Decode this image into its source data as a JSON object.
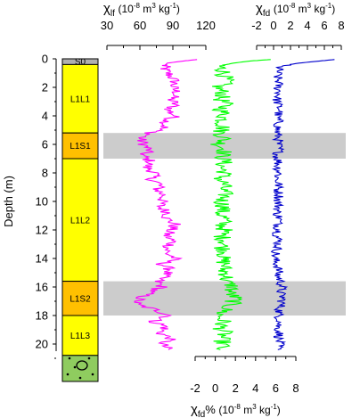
{
  "chart_data": {
    "type": "line",
    "y_axis": {
      "label": "Depth (m)",
      "ticks": [
        "0",
        "2",
        "4",
        "6",
        "8",
        "10",
        "12",
        "14",
        "16",
        "18",
        "20"
      ],
      "range": [
        0,
        20.5
      ],
      "inverted": true
    },
    "axes": [
      {
        "id": "xlf",
        "symbol": "χ",
        "subscript": "lf",
        "unit": "(10-8 m3 kg-1)",
        "unit_parts": [
          "(10",
          "-8",
          " m",
          "3",
          " kg",
          "-1",
          ")"
        ],
        "position": "top",
        "ticks": [
          "30",
          "60",
          "90",
          "120"
        ],
        "range": [
          30,
          120
        ],
        "color": "#ff00ff"
      },
      {
        "id": "xfd",
        "symbol": "χ",
        "subscript": "fd",
        "unit": "(10-8 m3 kg-1)",
        "unit_parts": [
          "(10",
          "-8",
          " m",
          "3",
          " kg",
          "-1",
          ")"
        ],
        "position": "top",
        "ticks": [
          "-2",
          "0",
          "2",
          "4",
          "6",
          "8"
        ],
        "range": [
          -2,
          8
        ],
        "color": "#0000cc"
      },
      {
        "id": "xfd_pct",
        "symbol": "χ",
        "subscript": "fd",
        "suffix": "%",
        "unit": "(10-8 m3 kg-1)",
        "unit_parts": [
          "(10",
          "-8",
          " m",
          "3",
          " kg",
          "-1",
          ")"
        ],
        "position": "bottom",
        "ticks": [
          "-2",
          "0",
          "2",
          "4",
          "6",
          "8"
        ],
        "range": [
          -2,
          8
        ],
        "color": "#00ff00"
      }
    ],
    "series": [
      {
        "id": "xlf",
        "color": "#ff00ff",
        "axis": "xlf",
        "points": [
          [
            0.05,
            112
          ],
          [
            0.15,
            100
          ],
          [
            0.3,
            85
          ],
          [
            0.5,
            82
          ],
          [
            0.8,
            83
          ],
          [
            1.2,
            88
          ],
          [
            1.6,
            92
          ],
          [
            2.0,
            90
          ],
          [
            2.4,
            94
          ],
          [
            2.8,
            88
          ],
          [
            3.2,
            92
          ],
          [
            3.6,
            86
          ],
          [
            4.0,
            92
          ],
          [
            4.4,
            84
          ],
          [
            4.8,
            82
          ],
          [
            5.2,
            70
          ],
          [
            5.6,
            60
          ],
          [
            6.0,
            64
          ],
          [
            6.4,
            68
          ],
          [
            6.8,
            62
          ],
          [
            7.2,
            70
          ],
          [
            7.6,
            66
          ],
          [
            8.0,
            74
          ],
          [
            8.4,
            70
          ],
          [
            8.8,
            78
          ],
          [
            9.2,
            76
          ],
          [
            9.6,
            82
          ],
          [
            10.0,
            80
          ],
          [
            10.4,
            78
          ],
          [
            10.8,
            86
          ],
          [
            11.2,
            84
          ],
          [
            11.6,
            92
          ],
          [
            12.0,
            88
          ],
          [
            12.4,
            84
          ],
          [
            12.8,
            90
          ],
          [
            13.2,
            86
          ],
          [
            13.6,
            84
          ],
          [
            14.0,
            92
          ],
          [
            14.4,
            80
          ],
          [
            14.8,
            88
          ],
          [
            15.2,
            82
          ],
          [
            15.6,
            76
          ],
          [
            16.0,
            80
          ],
          [
            16.4,
            68
          ],
          [
            16.8,
            60
          ],
          [
            17.2,
            56
          ],
          [
            17.6,
            74
          ],
          [
            18.0,
            88
          ],
          [
            18.4,
            72
          ],
          [
            18.8,
            84
          ],
          [
            19.2,
            78
          ],
          [
            19.6,
            88
          ],
          [
            20.0,
            80
          ],
          [
            20.4,
            86
          ]
        ]
      },
      {
        "id": "xfd_pct",
        "color": "#00ff00",
        "axis": "xfd_pct",
        "points": [
          [
            0.05,
            5.5
          ],
          [
            0.15,
            3.5
          ],
          [
            0.3,
            1.8
          ],
          [
            0.5,
            0.4
          ],
          [
            0.8,
            0.8
          ],
          [
            1.2,
            0.9
          ],
          [
            1.6,
            1.1
          ],
          [
            2.0,
            0.2
          ],
          [
            2.4,
            0.8
          ],
          [
            2.8,
            0.5
          ],
          [
            3.2,
            1.0
          ],
          [
            3.6,
            0.6
          ],
          [
            4.0,
            0.9
          ],
          [
            4.4,
            0.7
          ],
          [
            4.8,
            0.8
          ],
          [
            5.2,
            0.5
          ],
          [
            5.6,
            0.9
          ],
          [
            6.0,
            0.4
          ],
          [
            6.4,
            1.0
          ],
          [
            6.8,
            0.7
          ],
          [
            7.2,
            0.9
          ],
          [
            7.6,
            0.6
          ],
          [
            8.0,
            1.0
          ],
          [
            8.4,
            0.5
          ],
          [
            8.8,
            0.9
          ],
          [
            9.2,
            0.7
          ],
          [
            9.6,
            1.0
          ],
          [
            10.0,
            0.6
          ],
          [
            10.4,
            0.9
          ],
          [
            10.8,
            0.5
          ],
          [
            11.2,
            0.9
          ],
          [
            11.6,
            0.7
          ],
          [
            12.0,
            0.9
          ],
          [
            12.4,
            0.6
          ],
          [
            12.8,
            1.0
          ],
          [
            13.2,
            0.7
          ],
          [
            13.6,
            1.1
          ],
          [
            14.0,
            0.6
          ],
          [
            14.4,
            1.0
          ],
          [
            14.8,
            0.8
          ],
          [
            15.2,
            1.2
          ],
          [
            15.6,
            1.0
          ],
          [
            16.0,
            1.8
          ],
          [
            16.4,
            1.4
          ],
          [
            16.8,
            2.0
          ],
          [
            17.2,
            1.6
          ],
          [
            17.6,
            1.0
          ],
          [
            18.0,
            0.4
          ],
          [
            18.4,
            0.8
          ],
          [
            18.8,
            0.5
          ],
          [
            19.2,
            0.9
          ],
          [
            19.6,
            0.6
          ],
          [
            20.0,
            0.8
          ],
          [
            20.4,
            0.5
          ]
        ]
      },
      {
        "id": "xfd",
        "color": "#0000cc",
        "axis": "xfd",
        "points": [
          [
            0.05,
            7.2
          ],
          [
            0.15,
            5.5
          ],
          [
            0.3,
            3.0
          ],
          [
            0.5,
            0.8
          ],
          [
            0.8,
            0.6
          ],
          [
            1.2,
            0.4
          ],
          [
            1.6,
            0.6
          ],
          [
            2.0,
            0.5
          ],
          [
            2.4,
            0.7
          ],
          [
            2.8,
            0.4
          ],
          [
            3.2,
            0.5
          ],
          [
            3.6,
            0.8
          ],
          [
            4.0,
            0.4
          ],
          [
            4.4,
            0.6
          ],
          [
            4.8,
            0.5
          ],
          [
            5.2,
            0.4
          ],
          [
            5.6,
            0.6
          ],
          [
            6.0,
            0.5
          ],
          [
            6.4,
            0.7
          ],
          [
            6.8,
            0.4
          ],
          [
            7.2,
            0.6
          ],
          [
            7.6,
            0.5
          ],
          [
            8.0,
            0.7
          ],
          [
            8.4,
            0.4
          ],
          [
            8.8,
            0.6
          ],
          [
            9.2,
            0.5
          ],
          [
            9.6,
            0.7
          ],
          [
            10.0,
            0.5
          ],
          [
            10.4,
            0.6
          ],
          [
            10.8,
            0.4
          ],
          [
            11.2,
            0.7
          ],
          [
            11.6,
            0.5
          ],
          [
            12.0,
            0.6
          ],
          [
            12.4,
            0.4
          ],
          [
            12.8,
            0.6
          ],
          [
            13.2,
            0.5
          ],
          [
            13.6,
            0.3
          ],
          [
            14.0,
            0.1
          ],
          [
            14.4,
            0.4
          ],
          [
            14.8,
            0.6
          ],
          [
            15.2,
            0.5
          ],
          [
            15.6,
            0.8
          ],
          [
            16.0,
            1.0
          ],
          [
            16.4,
            0.8
          ],
          [
            16.8,
            1.1
          ],
          [
            17.2,
            0.9
          ],
          [
            17.6,
            0.7
          ],
          [
            18.0,
            0.6
          ],
          [
            18.4,
            0.8
          ],
          [
            18.8,
            0.5
          ],
          [
            19.2,
            0.7
          ],
          [
            19.6,
            0.6
          ],
          [
            20.0,
            0.7
          ],
          [
            20.4,
            0.5
          ]
        ]
      }
    ],
    "shaded_bands": [
      {
        "from": 5.2,
        "to": 7.0,
        "color": "#cccccc"
      },
      {
        "from": 15.6,
        "to": 18.0,
        "color": "#cccccc"
      }
    ],
    "stratigraphy": [
      {
        "label": "S0",
        "from": 0.0,
        "to": 0.4,
        "color": "#b0b0b0"
      },
      {
        "label": "L1L1",
        "from": 0.4,
        "to": 5.2,
        "color": "#ffff00"
      },
      {
        "label": "L1S1",
        "from": 5.2,
        "to": 7.0,
        "color": "#ffc000"
      },
      {
        "label": "L1L2",
        "from": 7.0,
        "to": 15.6,
        "color": "#ffff00"
      },
      {
        "label": "L1S2",
        "from": 15.6,
        "to": 18.0,
        "color": "#ffc000"
      },
      {
        "label": "L1L3",
        "from": 18.0,
        "to": 20.8,
        "color": "#ffff00"
      },
      {
        "label": "",
        "from": 20.8,
        "to": 23.0,
        "color": "#8fcc5f",
        "pattern": "gravel"
      }
    ]
  }
}
